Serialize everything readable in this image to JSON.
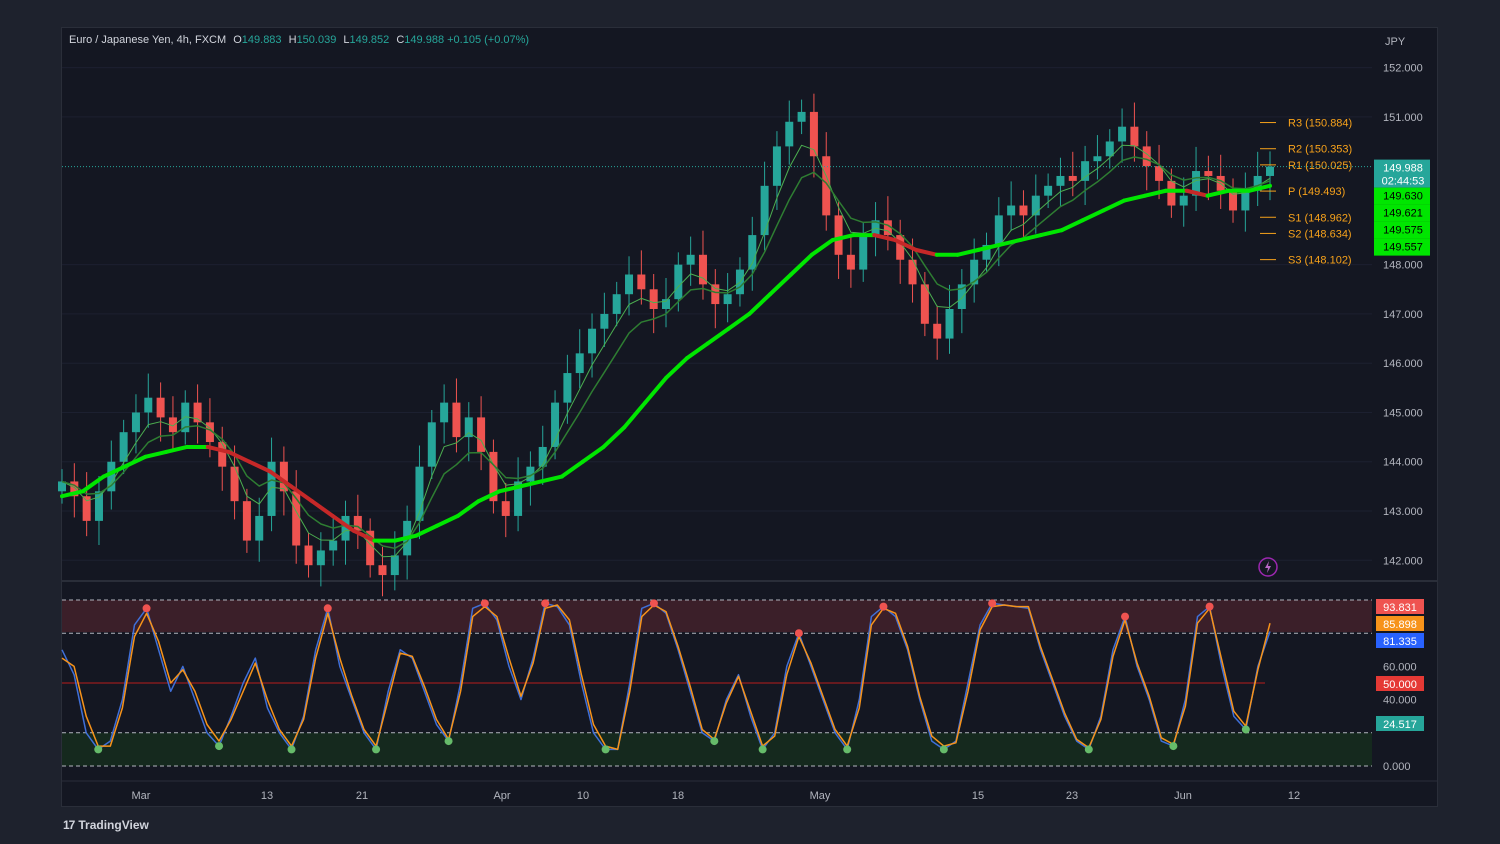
{
  "header": {
    "symbol": "Euro / Japanese Yen, 4h, FXCM",
    "open_label": "O",
    "open": "149.883",
    "high_label": "H",
    "high": "150.039",
    "low_label": "L",
    "low": "149.852",
    "close_label": "C",
    "close": "149.988",
    "change": "+0.105 (+0.07%)"
  },
  "footer": {
    "brand": "TradingView",
    "logo": "17"
  },
  "colors": {
    "background": "#141722",
    "up": "#26a69a",
    "down": "#ef5350",
    "ma_green": "#00e600",
    "ma_red": "#c62828",
    "pivot": "#f7a21b",
    "stoch_k": "#3f6fd8",
    "stoch_d": "#f7931a"
  },
  "chart_data": [
    {
      "type": "line",
      "title": "Euro / Japanese Yen, 4h, FXCM",
      "ylabel": "JPY",
      "ylim": [
        141.6,
        152.6
      ],
      "y_ticks": [
        "152.000",
        "151.000",
        "148.000",
        "147.000",
        "146.000",
        "145.000",
        "144.000",
        "143.000",
        "142.000"
      ],
      "x_ticks": [
        "Mar",
        "13",
        "21",
        "Apr",
        "10",
        "18",
        "May",
        "15",
        "23",
        "Jun",
        "12"
      ],
      "grid": true,
      "series": [
        {
          "values": [
            143.6,
            143.3,
            142.8,
            143.4,
            144.0,
            144.6,
            145.0,
            145.3,
            144.9,
            144.6,
            145.2,
            144.8,
            144.4,
            143.9,
            143.2,
            142.4,
            142.9,
            144.0,
            143.4,
            142.3,
            141.9,
            142.2,
            142.4,
            142.9,
            142.6,
            141.9,
            141.7,
            142.1,
            142.8,
            143.9,
            144.8,
            145.2,
            144.5,
            144.9,
            144.2,
            143.2,
            142.9,
            143.6,
            143.9,
            144.3,
            145.2,
            145.8,
            146.2,
            146.7,
            147.0,
            147.4,
            147.8,
            147.5,
            147.1,
            147.3,
            148.0,
            148.2,
            147.6,
            147.2,
            147.4,
            147.9,
            148.6,
            149.6,
            150.4,
            150.9,
            151.1,
            150.2,
            149.0,
            148.2,
            147.9,
            148.6,
            148.9,
            148.6,
            148.1,
            147.6,
            146.8,
            146.5,
            147.1,
            147.6,
            148.1,
            148.4,
            149.0,
            149.2,
            149.0,
            149.4,
            149.6,
            149.8,
            149.7,
            150.1,
            150.2,
            150.5,
            150.8,
            150.4,
            150.0,
            149.7,
            149.2,
            149.4,
            149.9,
            149.8,
            149.5,
            149.1,
            149.5,
            149.8,
            149.99
          ]
        },
        {
          "name": "",
          "values": [
            143.3,
            143.4,
            143.7,
            143.9,
            144.1,
            144.2,
            144.3,
            144.3,
            144.2,
            144.0,
            143.8,
            143.5,
            143.2,
            142.9,
            142.6,
            142.4,
            142.4,
            142.5,
            142.7,
            142.9,
            143.2,
            143.4,
            143.5,
            143.6,
            143.7,
            144.0,
            144.3,
            144.7,
            145.2,
            145.7,
            146.1,
            146.4,
            146.7,
            147.0,
            147.4,
            147.8,
            148.2,
            148.5,
            148.6,
            148.6,
            148.5,
            148.3,
            148.2,
            148.2,
            148.3,
            148.4,
            148.5,
            148.6,
            148.7,
            148.9,
            149.1,
            149.3,
            149.4,
            149.5,
            149.5,
            149.4,
            149.5,
            149.5,
            149.6
          ]
        }
      ],
      "pivots": [
        {
          "label": "R3",
          "value": "150.884"
        },
        {
          "label": "R2",
          "value": "150.353"
        },
        {
          "label": "R1",
          "value": "150.025"
        },
        {
          "label": "P",
          "value": "149.493"
        },
        {
          "label": "S1",
          "value": "148.962"
        },
        {
          "label": "S2",
          "value": "148.634"
        },
        {
          "label": "S3",
          "value": "148.102"
        }
      ],
      "price_tags": [
        {
          "value": "149.988",
          "sub": "02:44:53",
          "color": "#26a69a"
        },
        {
          "value": "149.630",
          "color": "#00e600"
        },
        {
          "value": "149.621",
          "color": "#00e600"
        },
        {
          "value": "149.575",
          "color": "#00e600"
        },
        {
          "value": "149.557",
          "color": "#00e600"
        }
      ]
    },
    {
      "type": "line",
      "title": "",
      "ylim": [
        0,
        100
      ],
      "y_ticks": [
        "60.000",
        "40.000",
        "0.000"
      ],
      "levels": [
        93.831,
        81.335
      ],
      "series": [
        {
          "values": [
            70,
            55,
            20,
            10,
            15,
            40,
            85,
            95,
            70,
            45,
            60,
            40,
            20,
            12,
            30,
            50,
            65,
            35,
            20,
            10,
            30,
            70,
            95,
            60,
            40,
            20,
            10,
            45,
            70,
            65,
            45,
            25,
            15,
            50,
            95,
            98,
            88,
            60,
            40,
            65,
            98,
            96,
            85,
            50,
            20,
            10,
            10,
            50,
            95,
            98,
            92,
            70,
            45,
            20,
            15,
            40,
            55,
            30,
            10,
            20,
            60,
            80,
            60,
            40,
            20,
            10,
            40,
            90,
            96,
            90,
            70,
            40,
            15,
            10,
            15,
            50,
            85,
            98,
            97,
            96,
            95,
            70,
            50,
            30,
            15,
            10,
            30,
            70,
            90,
            60,
            40,
            15,
            12,
            40,
            90,
            96,
            60,
            30,
            22,
            60,
            81
          ]
        },
        {
          "values": [
            65,
            60,
            30,
            12,
            12,
            35,
            78,
            92,
            75,
            50,
            58,
            45,
            25,
            15,
            28,
            45,
            62,
            40,
            22,
            12,
            28,
            65,
            92,
            65,
            42,
            22,
            12,
            40,
            68,
            66,
            48,
            28,
            16,
            45,
            90,
            96,
            90,
            65,
            42,
            62,
            95,
            97,
            88,
            55,
            25,
            12,
            10,
            45,
            90,
            97,
            93,
            72,
            48,
            22,
            16,
            38,
            54,
            33,
            12,
            18,
            55,
            78,
            62,
            42,
            22,
            12,
            35,
            85,
            95,
            92,
            72,
            42,
            18,
            12,
            14,
            45,
            82,
            96,
            97,
            96,
            96,
            72,
            52,
            32,
            16,
            11,
            28,
            66,
            88,
            62,
            42,
            17,
            13,
            36,
            86,
            95,
            64,
            33,
            24,
            58,
            86
          ]
        }
      ],
      "label_tags": [
        {
          "value": "93.831",
          "color": "#ef5350"
        },
        {
          "value": "85.898",
          "color": "#f7931a"
        },
        {
          "value": "81.335",
          "color": "#2962ff"
        },
        {
          "value": "50.000",
          "color": "#e53935"
        },
        {
          "value": "24.517",
          "color": "#26a69a"
        }
      ]
    }
  ]
}
